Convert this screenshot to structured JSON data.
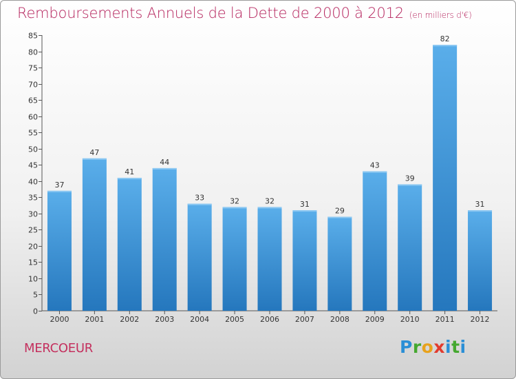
{
  "chart_data": {
    "type": "bar",
    "title": "Remboursements Annuels de la Dette de 2000 à 2012",
    "subtitle": "(en milliers d'€)",
    "categories": [
      "2000",
      "2001",
      "2002",
      "2003",
      "2004",
      "2005",
      "2006",
      "2007",
      "2008",
      "2009",
      "2010",
      "2011",
      "2012"
    ],
    "values": [
      37,
      47,
      41,
      44,
      33,
      32,
      32,
      31,
      29,
      43,
      39,
      82,
      31
    ],
    "ylim": [
      0,
      85
    ],
    "yticks": [
      0,
      5,
      10,
      15,
      20,
      25,
      30,
      35,
      40,
      45,
      50,
      55,
      60,
      65,
      70,
      75,
      80,
      85
    ],
    "grid": false,
    "bar_color": "#3f97da"
  },
  "place_name": "MERCOEUR",
  "logo_letters": [
    "P",
    "r",
    "o",
    "x",
    "i",
    "t",
    "i"
  ],
  "colors": {
    "title": "#b5245d",
    "place": "#c4305e",
    "bar_top": "#5aaeea",
    "bar_bottom": "#2577bd"
  }
}
